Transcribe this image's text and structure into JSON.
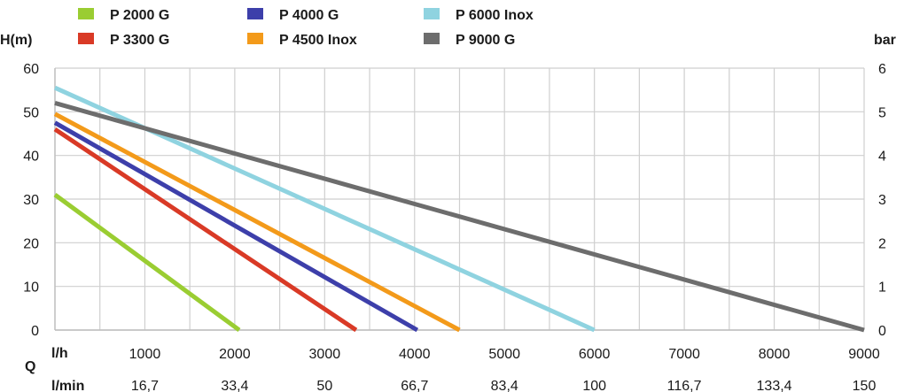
{
  "chart_data": {
    "type": "line",
    "ylabel_left": "H(m)",
    "ylabel_right": "bar",
    "xlabel": "Q",
    "x_unit_primary": "l/h",
    "x_unit_secondary": "l/min",
    "xlim": [
      0,
      9000
    ],
    "ylim": [
      0,
      60
    ],
    "ylim_right": [
      0,
      6
    ],
    "grid": true,
    "legend_position": "top",
    "x_ticks": [
      1000,
      2000,
      3000,
      4000,
      5000,
      6000,
      7000,
      8000,
      9000
    ],
    "x_tick_labels": [
      "1000",
      "2000",
      "3000",
      "4000",
      "5000",
      "6000",
      "7000",
      "8000",
      "9000"
    ],
    "x_ticks_secondary": [
      "16,7",
      "33,4",
      "50",
      "66,7",
      "83,4",
      "100",
      "116,7",
      "133,4",
      "150"
    ],
    "y_ticks": [
      0,
      10,
      20,
      30,
      40,
      50,
      60
    ],
    "y_ticks_right": [
      0,
      1,
      2,
      3,
      4,
      5,
      6
    ],
    "series": [
      {
        "name": "P 2000 G",
        "color": "#9acd32",
        "x": [
          0,
          2050
        ],
        "y": [
          31,
          0
        ]
      },
      {
        "name": "P 3300 G",
        "color": "#d93a26",
        "x": [
          0,
          3350
        ],
        "y": [
          46,
          0
        ]
      },
      {
        "name": "P 4000 G",
        "color": "#3d3faa",
        "x": [
          0,
          4030
        ],
        "y": [
          47.5,
          0
        ]
      },
      {
        "name": "P 4500 Inox",
        "color": "#f39a1a",
        "x": [
          0,
          4500
        ],
        "y": [
          49.5,
          0
        ]
      },
      {
        "name": "P 6000 Inox",
        "color": "#8fd3e0",
        "x": [
          0,
          6000
        ],
        "y": [
          55.5,
          0
        ]
      },
      {
        "name": "P 9000 G",
        "color": "#6d6d6d",
        "x": [
          0,
          9000
        ],
        "y": [
          52,
          0
        ]
      }
    ]
  }
}
